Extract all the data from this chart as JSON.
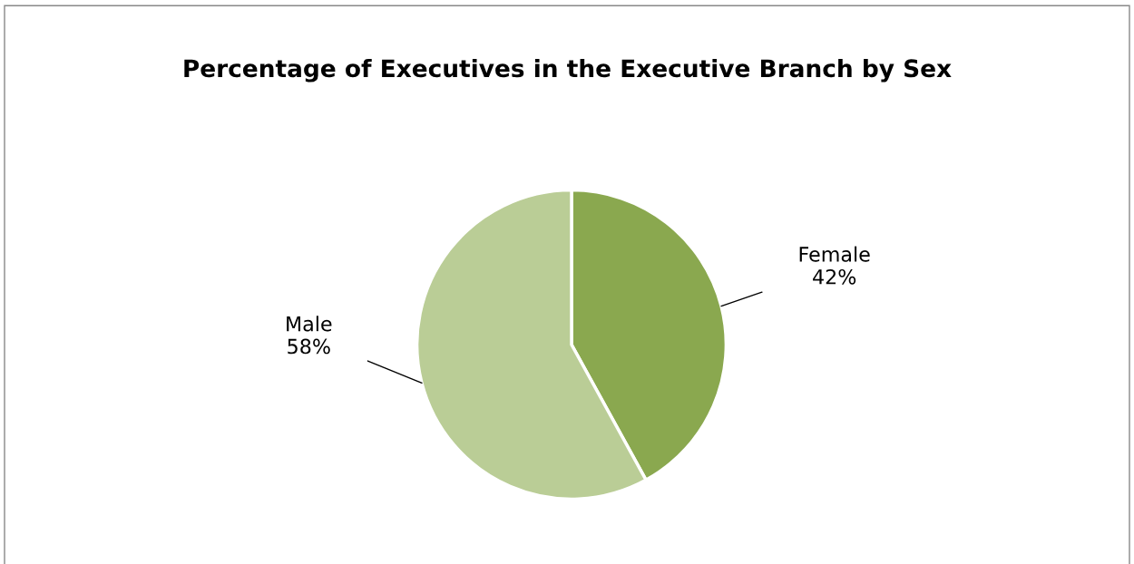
{
  "chart_data": {
    "type": "pie",
    "title": "Percentage of Executives in the Executive Branch by Sex",
    "categories": [
      "Female",
      "Male"
    ],
    "values": [
      42,
      58
    ],
    "colors": [
      "#8aa84f",
      "#bacd96"
    ],
    "value_labels": [
      "42%",
      "58%"
    ]
  }
}
